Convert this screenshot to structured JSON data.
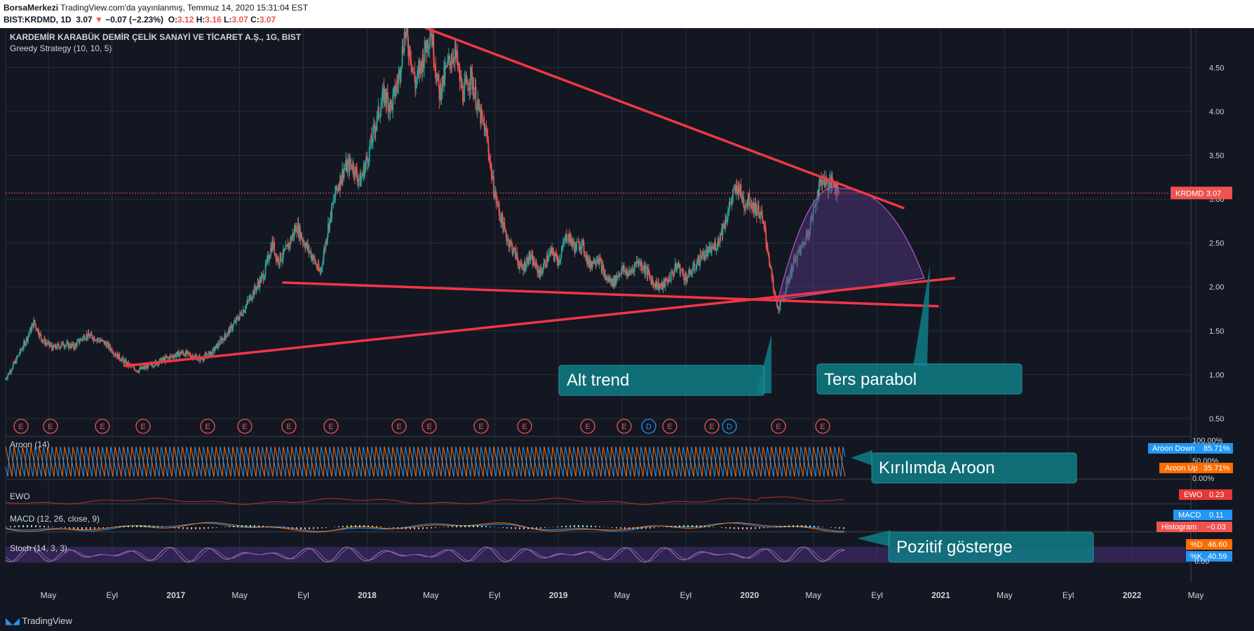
{
  "header": {
    "author": "BorsaMerkezi",
    "published": "TradingView.com'da yayınlanmış, Temmuz 14, 2020 15:31:04 EST",
    "symbol_line": {
      "symbol": "BIST:KRDMD, 1D",
      "last": "3.07",
      "change": "−0.07 (−2.23%)",
      "o_label": "O:",
      "o_val": "3.12",
      "h_label": "H:",
      "h_val": "3.16",
      "l_label": "L:",
      "l_val": "3.07",
      "c_label": "C:",
      "c_val": "3.07"
    }
  },
  "chart_title": "KARDEMİR KARABÜK DEMİR ÇELİK SANAYİ VE TİCARET A.Ş., 1G, BIST",
  "strategy": "Greedy Strategy (10, 10, 5)",
  "price_badge": {
    "symbol": "KRDMD",
    "value": "3.07"
  },
  "price_axis": [
    "4.50",
    "4.00",
    "3.50",
    "3.00",
    "2.50",
    "2.00",
    "1.50",
    "1.00",
    "0.50"
  ],
  "time_axis": [
    "May",
    "Eyl",
    "2017",
    "May",
    "Eyl",
    "2018",
    "May",
    "Eyl",
    "2019",
    "May",
    "Eyl",
    "2020",
    "May",
    "Eyl",
    "2021",
    "May",
    "Eyl",
    "2022",
    "May"
  ],
  "events": [
    "E",
    "E",
    "E",
    "E",
    "E",
    "E",
    "E",
    "E",
    "E",
    "E",
    "E",
    "E",
    "E",
    "E",
    "D",
    "E",
    "E",
    "D",
    "E",
    "E"
  ],
  "annotations": {
    "alt_trend": "Alt trend",
    "ters_parabol": "Ters parabol",
    "kirilimda_aroon": "Kırılımda Aroon",
    "pozitif": "Pozitif gösterge"
  },
  "panes": {
    "aroon": {
      "label": "Aroon (14)",
      "axis": [
        "100.00%",
        "50.00%",
        "0.00%"
      ],
      "down_label": "Aroon Down",
      "down_val": "85.71%",
      "up_label": "Aroon Up",
      "up_val": "35.71%"
    },
    "ewo": {
      "label": "EWO",
      "badge_label": "EWO",
      "badge_val": "0.23"
    },
    "macd": {
      "label": "MACD (12, 26, close, 9)",
      "macd_label": "MACD",
      "macd_val": "0.11",
      "hist_label": "Histogram",
      "hist_val": "−0.03"
    },
    "stoch": {
      "label": "Stoch (14, 3, 3)",
      "d_label": "%D",
      "d_val": "46.60",
      "k_label": "%K",
      "k_val": "40.59",
      "axis": [
        "0.00"
      ]
    }
  },
  "footer": {
    "brand": "TradingView"
  },
  "colors": {
    "background": "#131722",
    "candle_up": "#26a69a",
    "candle_down": "#ef5350",
    "trend_line": "#f23645",
    "annotation": "#0f7c85",
    "aroon_down": "#2196f3",
    "aroon_up": "#ff6d00",
    "stoch_fill": "#4a2d7a",
    "parabola": "#9c27b0"
  },
  "chart_data": {
    "type": "line",
    "title": "KARDEMİR KARABÜK DEMİR ÇELİK SANAYİ VE TİCARET A.Ş., 1G, BIST",
    "xlabel": "",
    "ylabel": "",
    "ylim": [
      0.3,
      4.95
    ],
    "xlim": [
      "2016-03-01",
      "2022-05-20"
    ],
    "series": [
      {
        "points": [
          [
            "2016-03-01",
            0.95
          ],
          [
            "2016-03-20",
            1.15
          ],
          [
            "2016-04-10",
            1.4
          ],
          [
            "2016-04-25",
            1.6
          ],
          [
            "2016-05-10",
            1.4
          ],
          [
            "2016-06-01",
            1.3
          ],
          [
            "2016-06-20",
            1.35
          ],
          [
            "2016-07-10",
            1.32
          ],
          [
            "2016-08-01",
            1.45
          ],
          [
            "2016-08-20",
            1.42
          ],
          [
            "2016-09-10",
            1.35
          ],
          [
            "2016-10-01",
            1.22
          ],
          [
            "2016-10-20",
            1.12
          ],
          [
            "2016-11-10",
            1.05
          ],
          [
            "2016-12-01",
            1.1
          ],
          [
            "2016-12-20",
            1.15
          ],
          [
            "2017-01-10",
            1.2
          ],
          [
            "2017-02-01",
            1.25
          ],
          [
            "2017-02-20",
            1.22
          ],
          [
            "2017-03-10",
            1.18
          ],
          [
            "2017-04-01",
            1.25
          ],
          [
            "2017-04-20",
            1.4
          ],
          [
            "2017-05-10",
            1.55
          ],
          [
            "2017-06-01",
            1.75
          ],
          [
            "2017-06-20",
            1.95
          ],
          [
            "2017-07-10",
            2.15
          ],
          [
            "2017-07-25",
            2.5
          ],
          [
            "2017-08-05",
            2.3
          ],
          [
            "2017-08-20",
            2.4
          ],
          [
            "2017-09-10",
            2.7
          ],
          [
            "2017-09-25",
            2.5
          ],
          [
            "2017-10-10",
            2.35
          ],
          [
            "2017-10-25",
            2.15
          ],
          [
            "2017-11-10",
            2.7
          ],
          [
            "2017-11-25",
            3.1
          ],
          [
            "2017-12-10",
            3.35
          ],
          [
            "2017-12-25",
            3.4
          ],
          [
            "2018-01-10",
            3.2
          ],
          [
            "2018-01-25",
            3.5
          ],
          [
            "2018-02-10",
            3.9
          ],
          [
            "2018-02-25",
            4.2
          ],
          [
            "2018-03-10",
            4.05
          ],
          [
            "2018-03-25",
            4.4
          ],
          [
            "2018-04-05",
            4.9
          ],
          [
            "2018-04-15",
            4.7
          ],
          [
            "2018-04-25",
            4.3
          ],
          [
            "2018-05-10",
            4.6
          ],
          [
            "2018-05-25",
            4.95
          ],
          [
            "2018-06-10",
            4.2
          ],
          [
            "2018-06-25",
            4.5
          ],
          [
            "2018-07-10",
            4.7
          ],
          [
            "2018-07-25",
            4.2
          ],
          [
            "2018-08-10",
            4.4
          ],
          [
            "2018-08-25",
            4.0
          ],
          [
            "2018-09-10",
            3.7
          ],
          [
            "2018-09-20",
            3.2
          ],
          [
            "2018-10-01",
            2.9
          ],
          [
            "2018-10-15",
            2.6
          ],
          [
            "2018-11-01",
            2.4
          ],
          [
            "2018-11-15",
            2.2
          ],
          [
            "2018-12-01",
            2.35
          ],
          [
            "2018-12-20",
            2.15
          ],
          [
            "2019-01-10",
            2.4
          ],
          [
            "2019-01-25",
            2.3
          ],
          [
            "2019-02-10",
            2.6
          ],
          [
            "2019-02-25",
            2.45
          ],
          [
            "2019-03-10",
            2.5
          ],
          [
            "2019-03-25",
            2.25
          ],
          [
            "2019-04-10",
            2.35
          ],
          [
            "2019-04-25",
            2.1
          ],
          [
            "2019-05-10",
            2.05
          ],
          [
            "2019-05-25",
            2.2
          ],
          [
            "2019-06-10",
            2.15
          ],
          [
            "2019-06-25",
            2.3
          ],
          [
            "2019-07-10",
            2.2
          ],
          [
            "2019-07-25",
            2.05
          ],
          [
            "2019-08-10",
            2.0
          ],
          [
            "2019-08-25",
            2.1
          ],
          [
            "2019-09-10",
            2.25
          ],
          [
            "2019-09-25",
            2.1
          ],
          [
            "2019-10-10",
            2.2
          ],
          [
            "2019-10-25",
            2.35
          ],
          [
            "2019-11-10",
            2.4
          ],
          [
            "2019-11-25",
            2.5
          ],
          [
            "2019-12-10",
            2.75
          ],
          [
            "2019-12-25",
            3.05
          ],
          [
            "2020-01-05",
            3.15
          ],
          [
            "2020-01-15",
            2.95
          ],
          [
            "2020-01-25",
            3.0
          ],
          [
            "2020-02-05",
            2.9
          ],
          [
            "2020-02-15",
            2.85
          ],
          [
            "2020-02-25",
            2.6
          ],
          [
            "2020-03-05",
            2.25
          ],
          [
            "2020-03-12",
            1.95
          ],
          [
            "2020-03-20",
            1.75
          ],
          [
            "2020-03-28",
            1.85
          ],
          [
            "2020-04-05",
            2.0
          ],
          [
            "2020-04-15",
            2.2
          ],
          [
            "2020-04-25",
            2.35
          ],
          [
            "2020-05-05",
            2.45
          ],
          [
            "2020-05-15",
            2.6
          ],
          [
            "2020-05-25",
            2.8
          ],
          [
            "2020-06-05",
            3.1
          ],
          [
            "2020-06-15",
            3.25
          ],
          [
            "2020-06-25",
            3.15
          ],
          [
            "2020-07-05",
            3.2
          ],
          [
            "2020-07-14",
            3.07
          ]
        ]
      }
    ]
  }
}
